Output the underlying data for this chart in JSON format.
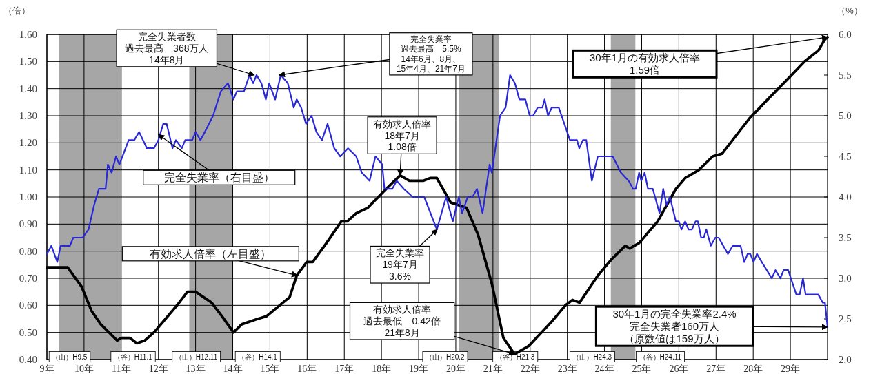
{
  "chart_data": {
    "type": "line",
    "ylabel": "（倍）",
    "y2label": "（%）",
    "xlim": [
      9,
      30
    ],
    "xticks": [
      {
        "value": 9,
        "label": "9年"
      },
      {
        "value": 10,
        "label": "10年"
      },
      {
        "value": 11,
        "label": "11年"
      },
      {
        "value": 12,
        "label": "12年"
      },
      {
        "value": 13,
        "label": "13年"
      },
      {
        "value": 14,
        "label": "14年"
      },
      {
        "value": 15,
        "label": "15年"
      },
      {
        "value": 16,
        "label": "16年"
      },
      {
        "value": 17,
        "label": "17年"
      },
      {
        "value": 18,
        "label": "18年"
      },
      {
        "value": 19,
        "label": "19年"
      },
      {
        "value": 20,
        "label": "20年"
      },
      {
        "value": 21,
        "label": "21年"
      },
      {
        "value": 22,
        "label": "22年"
      },
      {
        "value": 23,
        "label": "23年"
      },
      {
        "value": 24,
        "label": "24年"
      },
      {
        "value": 25,
        "label": "25年"
      },
      {
        "value": 26,
        "label": "26年"
      },
      {
        "value": 27,
        "label": "27年"
      },
      {
        "value": 28,
        "label": "28年"
      },
      {
        "value": 29,
        "label": "29年"
      }
    ],
    "ylim": [
      0.4,
      1.6
    ],
    "yticks": [
      {
        "value": 0.4,
        "label": "0.40"
      },
      {
        "value": 0.5,
        "label": "0.50"
      },
      {
        "value": 0.6,
        "label": "0.60"
      },
      {
        "value": 0.7,
        "label": "0.70"
      },
      {
        "value": 0.8,
        "label": "0.80"
      },
      {
        "value": 0.9,
        "label": "0.90"
      },
      {
        "value": 1.0,
        "label": "1.00"
      },
      {
        "value": 1.1,
        "label": "1.10"
      },
      {
        "value": 1.2,
        "label": "1.20"
      },
      {
        "value": 1.3,
        "label": "1.30"
      },
      {
        "value": 1.4,
        "label": "1.40"
      },
      {
        "value": 1.5,
        "label": "1.50"
      },
      {
        "value": 1.6,
        "label": "1.60"
      }
    ],
    "y2lim": [
      2,
      6
    ],
    "y2ticks": [
      {
        "value": 2,
        "label": "2.0"
      },
      {
        "value": 2.5,
        "label": "2.5"
      },
      {
        "value": 3,
        "label": "3.0"
      },
      {
        "value": 3.5,
        "label": "3.5"
      },
      {
        "value": 4,
        "label": "4.0"
      },
      {
        "value": 4.5,
        "label": "4.5"
      },
      {
        "value": 5,
        "label": "5.0"
      },
      {
        "value": 5.5,
        "label": "5.5"
      },
      {
        "value": 6,
        "label": "6.0"
      }
    ],
    "grid": true,
    "bands": [
      {
        "axis": "x",
        "from": 9.33,
        "to": 11.0,
        "color": "#a6a6a6"
      },
      {
        "axis": "x",
        "from": 12.83,
        "to": 14.0,
        "color": "#a6a6a6"
      },
      {
        "axis": "x",
        "from": 20.08,
        "to": 21.17,
        "color": "#a6a6a6"
      },
      {
        "axis": "x",
        "from": 24.17,
        "to": 24.83,
        "color": "#a6a6a6"
      }
    ],
    "series": [
      {
        "color": "#000000",
        "x": [
          9.0,
          9.56,
          9.93,
          10.2,
          10.45,
          10.89,
          11.0,
          11.23,
          11.42,
          11.63,
          11.88,
          12.19,
          12.5,
          12.78,
          13.0,
          13.43,
          13.71,
          14.02,
          14.24,
          14.67,
          14.91,
          15.35,
          15.53,
          15.72,
          15.99,
          16.15,
          16.52,
          16.92,
          17.08,
          17.32,
          17.63,
          18.13,
          18.5,
          18.75,
          19.12,
          19.31,
          19.49,
          19.86,
          20.29,
          20.6,
          20.97,
          21.28,
          21.58,
          21.96,
          22.58,
          22.95,
          23.14,
          23.33,
          23.82,
          24.19,
          24.56,
          24.68,
          24.93,
          25.43,
          25.92,
          26.17,
          26.54,
          26.91,
          27.16,
          27.9,
          28.39,
          28.89,
          29.38,
          29.75,
          29.92,
          30.0
        ],
        "values": [
          0.74,
          0.74,
          0.67,
          0.58,
          0.53,
          0.47,
          0.48,
          0.48,
          0.46,
          0.47,
          0.5,
          0.55,
          0.6,
          0.65,
          0.65,
          0.61,
          0.56,
          0.5,
          0.53,
          0.55,
          0.56,
          0.61,
          0.63,
          0.71,
          0.76,
          0.76,
          0.83,
          0.91,
          0.91,
          0.94,
          0.96,
          1.03,
          1.08,
          1.06,
          1.06,
          1.07,
          1.07,
          0.98,
          0.96,
          0.86,
          0.68,
          0.48,
          0.42,
          0.45,
          0.54,
          0.6,
          0.62,
          0.61,
          0.71,
          0.77,
          0.82,
          0.81,
          0.83,
          0.91,
          1.03,
          1.07,
          1.1,
          1.15,
          1.16,
          1.29,
          1.36,
          1.43,
          1.5,
          1.54,
          1.58,
          1.59
        ]
      },
      {
        "color": "#2828d8",
        "axis": "y2",
        "x": [
          9.0,
          9.12,
          9.28,
          9.37,
          9.62,
          9.71,
          9.96,
          10.12,
          10.27,
          10.4,
          10.58,
          10.64,
          10.74,
          10.86,
          10.95,
          11.2,
          11.35,
          11.48,
          11.69,
          11.88,
          12.0,
          12.13,
          12.22,
          12.38,
          12.47,
          12.63,
          12.72,
          12.91,
          13.0,
          13.13,
          13.25,
          13.47,
          13.68,
          13.87,
          14.02,
          14.11,
          14.3,
          14.45,
          14.55,
          14.64,
          14.77,
          14.89,
          14.98,
          15.14,
          15.29,
          15.48,
          15.64,
          15.72,
          15.84,
          15.97,
          16.12,
          16.25,
          16.4,
          16.55,
          16.73,
          16.89,
          17.1,
          17.32,
          17.47,
          17.68,
          17.84,
          18.02,
          18.08,
          18.29,
          18.41,
          18.6,
          18.84,
          19.15,
          19.49,
          19.74,
          19.92,
          20.08,
          20.17,
          20.32,
          20.45,
          20.57,
          20.72,
          20.91,
          20.97,
          21.19,
          21.34,
          21.46,
          21.59,
          21.71,
          21.87,
          21.99,
          22.08,
          22.2,
          22.33,
          22.39,
          22.48,
          22.58,
          22.77,
          23.07,
          23.26,
          23.32,
          23.42,
          23.51,
          23.66,
          23.82,
          24.22,
          24.44,
          24.65,
          24.77,
          24.84,
          24.93,
          24.99,
          25.08,
          25.17,
          25.3,
          25.48,
          25.58,
          25.67,
          25.76,
          25.92,
          26.0,
          26.07,
          26.17,
          26.26,
          26.35,
          26.45,
          26.51,
          26.6,
          26.67,
          26.74,
          26.86,
          26.98,
          27.07,
          27.32,
          27.45,
          27.66,
          27.76,
          27.85,
          27.92,
          28.01,
          28.1,
          28.23,
          28.5,
          28.6,
          28.73,
          28.82,
          28.94,
          29.16,
          29.25,
          29.34,
          29.41,
          29.75,
          29.87,
          29.93,
          30.0
        ],
        "values": [
          3.3,
          3.4,
          3.2,
          3.4,
          3.4,
          3.5,
          3.5,
          3.6,
          3.9,
          4.1,
          4.1,
          4.4,
          4.3,
          4.5,
          4.4,
          4.7,
          4.7,
          4.8,
          4.6,
          4.6,
          4.7,
          4.9,
          4.9,
          4.6,
          4.7,
          4.6,
          4.7,
          4.7,
          4.8,
          4.7,
          4.8,
          5.0,
          5.3,
          5.4,
          5.2,
          5.3,
          5.3,
          5.5,
          5.4,
          5.5,
          5.4,
          5.2,
          5.4,
          5.2,
          5.5,
          5.4,
          5.1,
          5.2,
          5.1,
          4.9,
          5.0,
          4.8,
          4.7,
          4.9,
          4.6,
          4.5,
          4.6,
          4.5,
          4.3,
          4.2,
          4.5,
          4.4,
          4.1,
          4.1,
          4.2,
          4.1,
          4.0,
          4.0,
          3.6,
          4.0,
          3.7,
          4.0,
          3.8,
          4.0,
          4.0,
          4.1,
          3.8,
          4.4,
          4.3,
          5.0,
          5.1,
          5.5,
          5.4,
          5.2,
          5.2,
          5.0,
          5.0,
          5.1,
          5.1,
          5.2,
          5.0,
          5.1,
          5.1,
          4.7,
          4.7,
          4.6,
          4.7,
          4.7,
          4.2,
          4.5,
          4.5,
          4.3,
          4.2,
          4.1,
          4.1,
          4.3,
          4.2,
          4.3,
          4.1,
          4.1,
          3.8,
          4.1,
          3.9,
          4.0,
          3.7,
          3.7,
          3.6,
          3.7,
          3.6,
          3.6,
          3.7,
          3.7,
          3.5,
          3.5,
          3.6,
          3.4,
          3.5,
          3.5,
          3.3,
          3.4,
          3.4,
          3.2,
          3.3,
          3.3,
          3.2,
          3.3,
          3.2,
          3.0,
          3.1,
          3.0,
          3.1,
          3.1,
          2.8,
          2.8,
          3.0,
          2.8,
          2.8,
          2.7,
          2.7,
          2.4
        ]
      }
    ],
    "annotations": [
      {
        "text": "完全失業者数過去最高　368万人14年8月",
        "x": 14.58,
        "y": 1.45
      },
      {
        "text": "完全失業率過去最高　5.5%14年6月、8月、15年4月、21年7月",
        "x": 15.25,
        "y": 1.45
      },
      {
        "text": "完全失業率（右目盛）",
        "x": 12.0,
        "y": 1.23
      },
      {
        "text": "有効求人倍率（左目盛）",
        "x": 15.74,
        "y": 0.71
      },
      {
        "text": "有効求人倍率\n18年7月\n1.08倍",
        "x": 18.5,
        "y": 1.08
      },
      {
        "text": "完全失業率\n19年7月\n3.6%",
        "x": 19.5,
        "y": 0.88
      },
      {
        "text": "有効求人倍率過去最低　0.42倍21年8月",
        "x": 21.58,
        "y": 0.42
      },
      {
        "text": "30年1月の有効求人倍率\n1.59倍",
        "x": 30.0,
        "y": 1.59
      },
      {
        "text": "30年1月の完全失業率2.4%完全失業者160万人（原数値は159万人）",
        "x": 30.0,
        "y": 0.52
      },
      {
        "text": "（山）H9.5",
        "x": 9.33,
        "y": 0.4
      },
      {
        "text": "（谷）H11.1",
        "x": 11.0,
        "y": 0.4
      },
      {
        "text": "（山）H12.11",
        "x": 12.83,
        "y": 0.4
      },
      {
        "text": "（谷）H14.1",
        "x": 14.0,
        "y": 0.4
      },
      {
        "text": "（山）H20.2",
        "x": 20.08,
        "y": 0.4
      },
      {
        "text": "（谷）H21.3",
        "x": 21.17,
        "y": 0.4
      },
      {
        "text": "（山）H24.3",
        "x": 24.17,
        "y": 0.4
      },
      {
        "text": "（谷）H24.11",
        "x": 24.83,
        "y": 0.4
      }
    ]
  }
}
